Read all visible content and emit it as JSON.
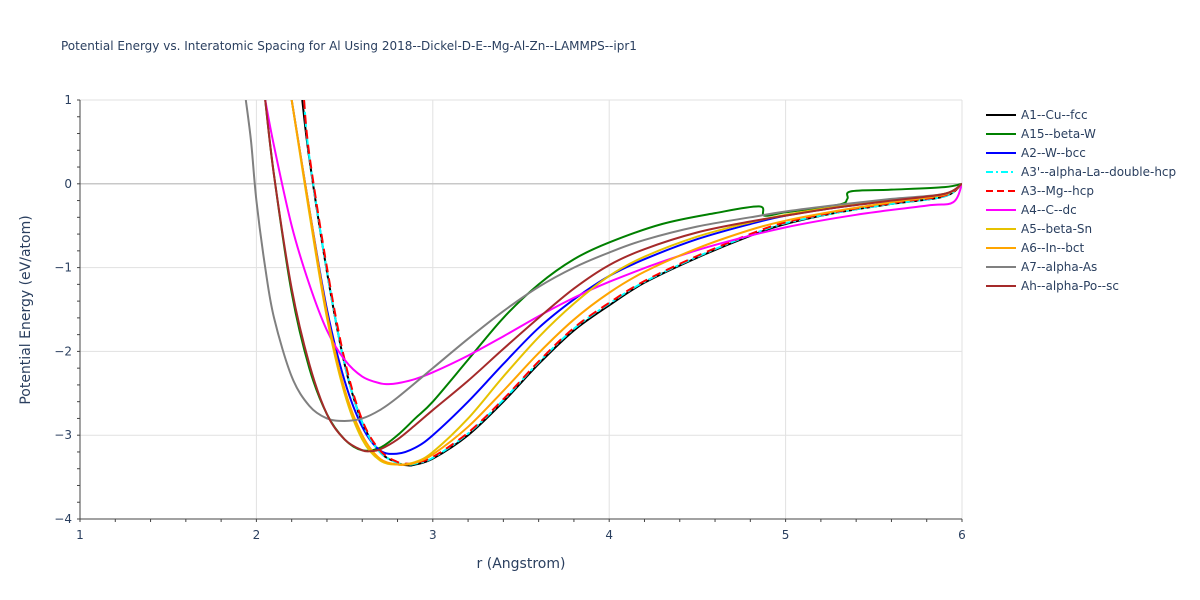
{
  "chart_data": {
    "type": "line",
    "title": "Potential Energy vs. Interatomic Spacing for Al Using 2018--Dickel-D-E--Mg-Al-Zn--LAMMPS--ipr1",
    "xlabel": "r (Angstrom)",
    "ylabel": "Potential Energy (eV/atom)",
    "xlim": [
      1,
      6
    ],
    "ylim": [
      -4,
      1
    ],
    "xticks": [
      1,
      2,
      3,
      4,
      5,
      6
    ],
    "yticks": [
      -4,
      -3,
      -2,
      -1,
      0,
      1
    ],
    "grid": true,
    "legend_position": "right",
    "series": [
      {
        "name": "A1--Cu--fcc",
        "color": "#000000",
        "dash": "solid",
        "x": [
          2.26,
          2.3,
          2.4,
          2.5,
          2.6,
          2.7,
          2.8,
          2.86,
          2.9,
          3.0,
          3.2,
          3.4,
          3.6,
          3.8,
          4.0,
          4.2,
          4.5,
          4.8,
          5.0,
          5.3,
          5.6,
          5.9,
          6.0
        ],
        "y": [
          1.0,
          0.3,
          -1.05,
          -2.15,
          -2.85,
          -3.2,
          -3.33,
          -3.36,
          -3.35,
          -3.28,
          -3.0,
          -2.6,
          -2.15,
          -1.75,
          -1.45,
          -1.18,
          -0.88,
          -0.62,
          -0.48,
          -0.34,
          -0.24,
          -0.15,
          0.0
        ]
      },
      {
        "name": "A15--beta-W",
        "color": "#008000",
        "dash": "solid",
        "x": [
          2.05,
          2.1,
          2.2,
          2.3,
          2.4,
          2.5,
          2.6,
          2.7,
          2.8,
          2.9,
          3.0,
          3.2,
          3.4,
          3.6,
          3.8,
          4.0,
          4.3,
          4.6,
          4.85,
          4.88,
          5.0,
          5.3,
          5.35,
          5.37,
          5.6,
          5.9,
          6.0
        ],
        "y": [
          1.0,
          0.1,
          -1.3,
          -2.2,
          -2.75,
          -3.05,
          -3.18,
          -3.15,
          -3.0,
          -2.8,
          -2.6,
          -2.1,
          -1.6,
          -1.2,
          -0.9,
          -0.7,
          -0.48,
          -0.35,
          -0.27,
          -0.38,
          -0.34,
          -0.25,
          -0.18,
          -0.09,
          -0.07,
          -0.04,
          0.0
        ]
      },
      {
        "name": "A2--W--bcc",
        "color": "#0000ff",
        "dash": "solid",
        "x": [
          2.2,
          2.3,
          2.4,
          2.5,
          2.6,
          2.7,
          2.8,
          2.9,
          3.0,
          3.2,
          3.4,
          3.6,
          3.8,
          4.0,
          4.2,
          4.5,
          4.8,
          5.0,
          5.3,
          5.6,
          5.9,
          6.0
        ],
        "y": [
          1.0,
          -0.3,
          -1.5,
          -2.35,
          -2.9,
          -3.18,
          -3.22,
          -3.15,
          -3.0,
          -2.6,
          -2.15,
          -1.72,
          -1.38,
          -1.1,
          -0.9,
          -0.66,
          -0.48,
          -0.38,
          -0.28,
          -0.2,
          -0.13,
          0.0
        ]
      },
      {
        "name": "A3'--alpha-La--double-hcp",
        "color": "#00ffff",
        "dash": "dashdot",
        "x": [
          2.27,
          2.3,
          2.4,
          2.5,
          2.6,
          2.7,
          2.8,
          2.86,
          2.9,
          3.0,
          3.2,
          3.4,
          3.6,
          3.8,
          4.0,
          4.2,
          4.5,
          4.8,
          5.0,
          5.3,
          5.6,
          5.9,
          6.0
        ],
        "y": [
          1.0,
          0.32,
          -1.05,
          -2.15,
          -2.85,
          -3.2,
          -3.33,
          -3.35,
          -3.34,
          -3.27,
          -2.98,
          -2.58,
          -2.13,
          -1.73,
          -1.43,
          -1.17,
          -0.87,
          -0.61,
          -0.47,
          -0.34,
          -0.24,
          -0.15,
          0.0
        ]
      },
      {
        "name": "A3--Mg--hcp",
        "color": "#ff0000",
        "dash": "dash",
        "x": [
          2.27,
          2.3,
          2.4,
          2.5,
          2.6,
          2.7,
          2.8,
          2.86,
          2.9,
          3.0,
          3.2,
          3.4,
          3.6,
          3.8,
          4.0,
          4.2,
          4.5,
          4.8,
          5.0,
          5.3,
          5.6,
          5.9,
          6.0
        ],
        "y": [
          1.0,
          0.35,
          -1.0,
          -2.1,
          -2.82,
          -3.18,
          -3.32,
          -3.34,
          -3.33,
          -3.26,
          -2.97,
          -2.57,
          -2.12,
          -1.72,
          -1.42,
          -1.16,
          -0.86,
          -0.6,
          -0.46,
          -0.33,
          -0.23,
          -0.14,
          0.0
        ]
      },
      {
        "name": "A4--C--dc",
        "color": "#ff00ff",
        "dash": "solid",
        "x": [
          2.05,
          2.1,
          2.2,
          2.3,
          2.4,
          2.5,
          2.6,
          2.7,
          2.75,
          2.8,
          2.9,
          3.0,
          3.2,
          3.4,
          3.6,
          3.8,
          4.0,
          4.3,
          4.6,
          5.0,
          5.4,
          5.8,
          5.95,
          6.0
        ],
        "y": [
          1.0,
          0.45,
          -0.5,
          -1.2,
          -1.75,
          -2.1,
          -2.3,
          -2.38,
          -2.39,
          -2.38,
          -2.33,
          -2.25,
          -2.05,
          -1.82,
          -1.58,
          -1.36,
          -1.17,
          -0.93,
          -0.73,
          -0.52,
          -0.37,
          -0.26,
          -0.22,
          0.0
        ]
      },
      {
        "name": "A5--beta-Sn",
        "color": "#e6c200",
        "dash": "solid",
        "x": [
          2.2,
          2.3,
          2.4,
          2.5,
          2.6,
          2.7,
          2.8,
          2.9,
          3.0,
          3.2,
          3.4,
          3.6,
          3.8,
          4.0,
          4.2,
          4.5,
          4.8,
          5.0,
          5.3,
          5.6,
          5.9,
          6.0
        ],
        "y": [
          1.0,
          -0.35,
          -1.6,
          -2.5,
          -3.05,
          -3.3,
          -3.35,
          -3.32,
          -3.2,
          -2.8,
          -2.3,
          -1.83,
          -1.43,
          -1.1,
          -0.87,
          -0.63,
          -0.46,
          -0.37,
          -0.27,
          -0.19,
          -0.12,
          0.0
        ]
      },
      {
        "name": "A6--In--bct",
        "color": "#ffa500",
        "dash": "solid",
        "x": [
          2.2,
          2.3,
          2.4,
          2.5,
          2.6,
          2.7,
          2.8,
          2.85,
          2.9,
          3.0,
          3.2,
          3.4,
          3.6,
          3.8,
          4.0,
          4.2,
          4.5,
          4.8,
          5.0,
          5.3,
          5.6,
          5.9,
          6.0
        ],
        "y": [
          1.0,
          -0.3,
          -1.55,
          -2.45,
          -3.0,
          -3.28,
          -3.35,
          -3.35,
          -3.33,
          -3.23,
          -2.9,
          -2.47,
          -2.02,
          -1.62,
          -1.3,
          -1.05,
          -0.77,
          -0.55,
          -0.44,
          -0.32,
          -0.22,
          -0.13,
          0.0
        ]
      },
      {
        "name": "A7--alpha-As",
        "color": "#808080",
        "dash": "solid",
        "x": [
          1.94,
          1.97,
          2.0,
          2.05,
          2.1,
          2.2,
          2.3,
          2.4,
          2.5,
          2.6,
          2.7,
          2.8,
          3.0,
          3.2,
          3.4,
          3.6,
          3.8,
          4.0,
          4.2,
          4.5,
          4.8,
          5.0,
          5.3,
          5.6,
          5.9,
          6.0
        ],
        "y": [
          1.0,
          0.5,
          -0.2,
          -1.0,
          -1.6,
          -2.3,
          -2.65,
          -2.8,
          -2.83,
          -2.8,
          -2.7,
          -2.55,
          -2.2,
          -1.85,
          -1.52,
          -1.23,
          -1.0,
          -0.82,
          -0.67,
          -0.51,
          -0.4,
          -0.33,
          -0.25,
          -0.18,
          -0.12,
          0.0
        ]
      },
      {
        "name": "Ah--alpha-Po--sc",
        "color": "#a52a2a",
        "dash": "solid",
        "x": [
          2.05,
          2.1,
          2.2,
          2.3,
          2.4,
          2.5,
          2.6,
          2.65,
          2.7,
          2.8,
          2.9,
          3.0,
          3.2,
          3.4,
          3.6,
          3.8,
          4.0,
          4.2,
          4.5,
          4.8,
          5.0,
          5.3,
          5.6,
          5.9,
          6.0
        ],
        "y": [
          1.0,
          0.1,
          -1.25,
          -2.15,
          -2.75,
          -3.05,
          -3.18,
          -3.19,
          -3.17,
          -3.05,
          -2.88,
          -2.7,
          -2.35,
          -1.97,
          -1.6,
          -1.25,
          -0.97,
          -0.78,
          -0.58,
          -0.45,
          -0.38,
          -0.28,
          -0.2,
          -0.12,
          0.0
        ]
      }
    ]
  }
}
